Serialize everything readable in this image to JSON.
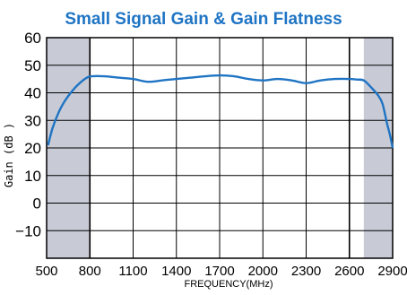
{
  "chart_data": {
    "type": "line",
    "title": "Small Signal Gain & Gain Flatness",
    "xlabel": "FREQUENCY(MHz)",
    "ylabel": "Gain (dB )",
    "xlim": [
      500,
      2900
    ],
    "ylim": [
      -20,
      60
    ],
    "xticks": [
      500,
      800,
      1100,
      1400,
      1700,
      2000,
      2300,
      2600,
      2900
    ],
    "yticks": [
      60,
      50,
      40,
      30,
      20,
      10,
      0,
      -10
    ],
    "grid": true,
    "shaded_regions": [
      {
        "from": 500,
        "to": 800
      },
      {
        "from": 2700,
        "to": 2900
      }
    ],
    "series": [
      {
        "color": "#1f74c4",
        "x": [
          510,
          540,
          580,
          620,
          660,
          700,
          740,
          780,
          810,
          900,
          1000,
          1100,
          1200,
          1300,
          1400,
          1500,
          1600,
          1700,
          1800,
          1900,
          2000,
          2100,
          2200,
          2300,
          2400,
          2500,
          2600,
          2650,
          2700,
          2750,
          2800,
          2830,
          2860,
          2880,
          2900
        ],
        "y": [
          21,
          27,
          32.5,
          36.5,
          39.5,
          42,
          44,
          45.5,
          46,
          46,
          45.5,
          45,
          44,
          44.5,
          45,
          45.5,
          46,
          46.3,
          46,
          45,
          44.5,
          45,
          44.5,
          43.5,
          44.5,
          45,
          45,
          44.8,
          44.5,
          42,
          39,
          36,
          29,
          25,
          20
        ]
      }
    ],
    "colors": {
      "line": "#1f74c4",
      "title": "#1f74c4",
      "shade": "#c8cbd6",
      "grid": "#000000"
    }
  }
}
